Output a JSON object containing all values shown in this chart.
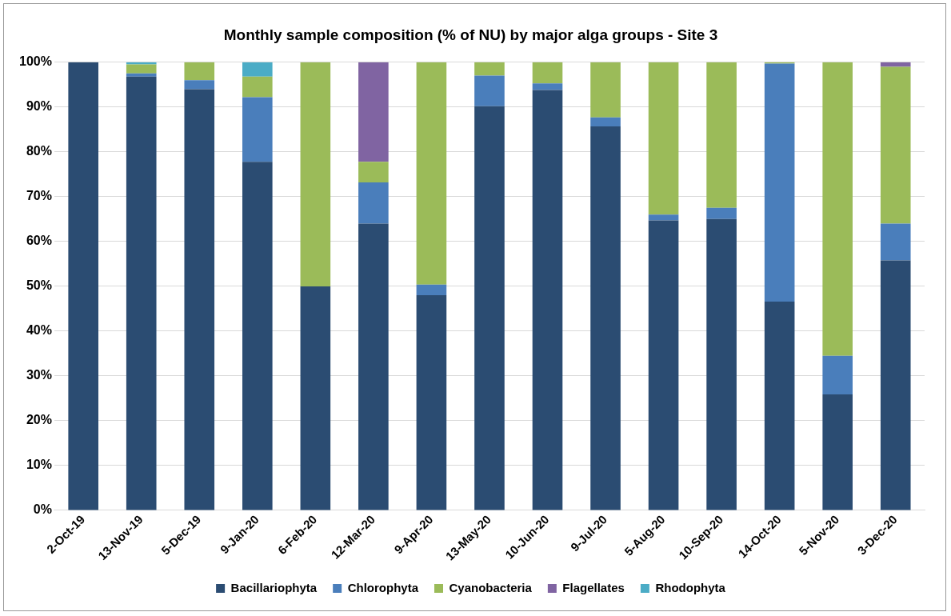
{
  "chart_data": {
    "type": "bar",
    "title": "Monthly sample composition (% of NU) by major alga groups - Site 3",
    "stacked": true,
    "grid": "y",
    "legend": "bottom",
    "categories": [
      "2-Oct-19",
      "13-Nov-19",
      "5-Dec-19",
      "9-Jan-20",
      "6-Feb-20",
      "12-Mar-20",
      "9-Apr-20",
      "13-May-20",
      "10-Jun-20",
      "9-Jul-20",
      "5-Aug-20",
      "10-Sep-20",
      "14-Oct-20",
      "5-Nov-20",
      "3-Dec-20"
    ],
    "series": [
      {
        "name": "Bacillariophyta",
        "color": "#2b4c72",
        "values": [
          100,
          96.8,
          94,
          77.8,
          50,
          64,
          48,
          90.2,
          93.8,
          85.7,
          64.7,
          65,
          46.6,
          25.9,
          55.8
        ]
      },
      {
        "name": "Chlorophyta",
        "color": "#4a7ebb",
        "values": [
          0,
          0.7,
          2,
          14.4,
          0,
          9.2,
          2.4,
          6.8,
          1.5,
          2,
          1.3,
          2.5,
          53.1,
          8.6,
          8.2
        ]
      },
      {
        "name": "Cyanobacteria",
        "color": "#9bbb59",
        "values": [
          0,
          2,
          4,
          4.6,
          50,
          4.6,
          49.6,
          3,
          4.7,
          12.3,
          34,
          32.5,
          0.3,
          65.5,
          35
        ]
      },
      {
        "name": "Flagellates",
        "color": "#8064a2",
        "values": [
          0,
          0,
          0,
          0,
          0,
          22.2,
          0,
          0,
          0,
          0,
          0,
          0,
          0,
          0,
          1
        ]
      },
      {
        "name": "Rhodophyta",
        "color": "#4bacc6",
        "values": [
          0,
          0.5,
          0,
          3.2,
          0,
          0,
          0,
          0,
          0,
          0,
          0,
          0,
          0,
          0,
          0
        ]
      }
    ],
    "ylim": [
      0,
      100
    ],
    "yticks": [
      {
        "value": 0,
        "label": "0%"
      },
      {
        "value": 10,
        "label": "10%"
      },
      {
        "value": 20,
        "label": "20%"
      },
      {
        "value": 30,
        "label": "30%"
      },
      {
        "value": 40,
        "label": "40%"
      },
      {
        "value": 50,
        "label": "50%"
      },
      {
        "value": 60,
        "label": "60%"
      },
      {
        "value": 70,
        "label": "70%"
      },
      {
        "value": 80,
        "label": "80%"
      },
      {
        "value": 90,
        "label": "90%"
      },
      {
        "value": 100,
        "label": "100%"
      }
    ]
  }
}
